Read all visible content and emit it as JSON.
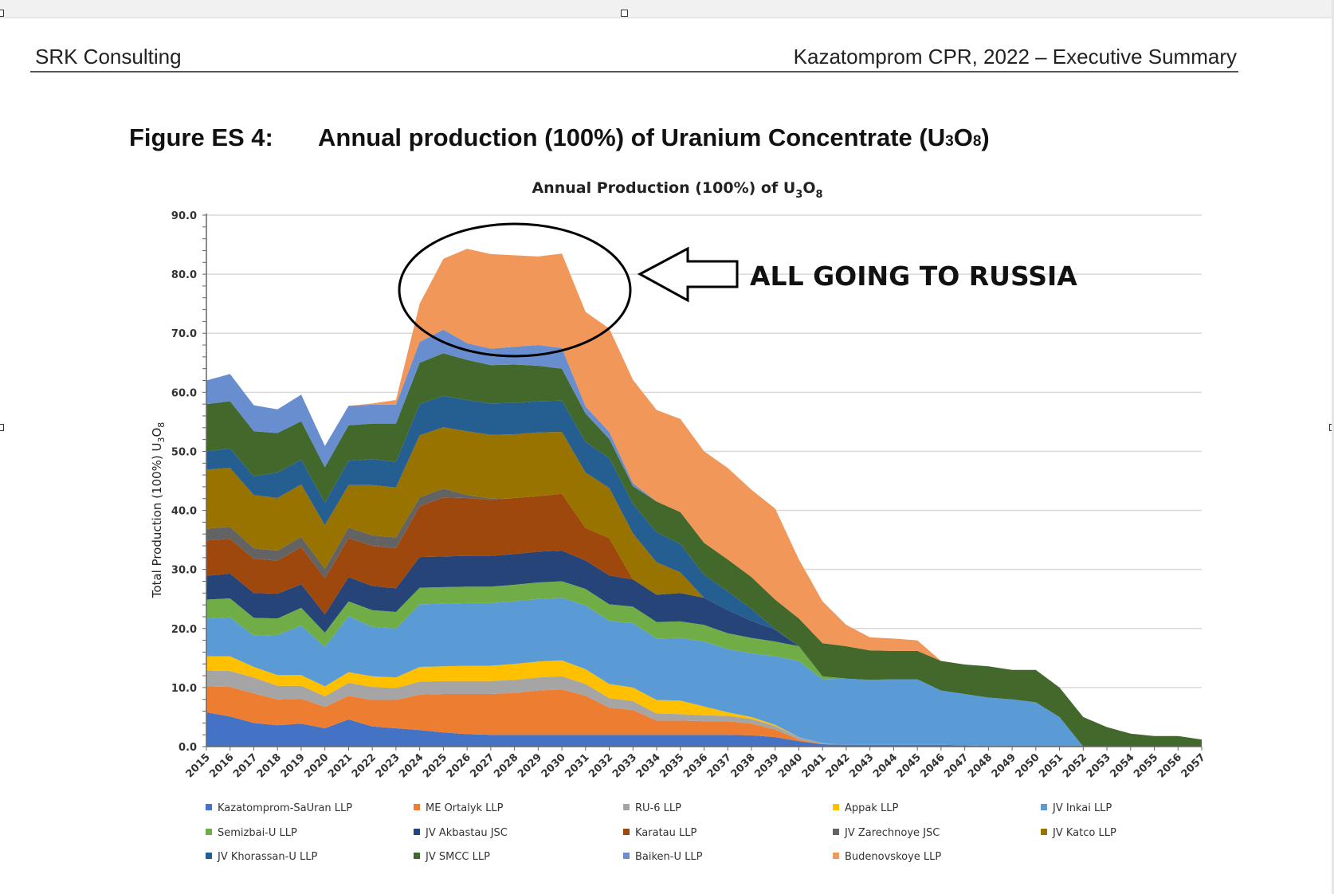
{
  "header": {
    "left": "SRK Consulting",
    "right": "Kazatomprom CPR, 2022 – Executive Summary"
  },
  "figure": {
    "label": "Figure ES 4:",
    "caption_prefix": "Annual production (100%) of Uranium Concentrate (U",
    "caption_sub1": "3",
    "caption_mid": "O",
    "caption_sub2": "8",
    "caption_suffix": ")"
  },
  "annotation": {
    "text": "ALL GOING TO RUSSIA"
  },
  "chart_data": {
    "type": "area",
    "stacked": true,
    "title_prefix": "Annual Production (100%) of U",
    "title_sub1": "3",
    "title_mid": "O",
    "title_sub2": "8",
    "ylabel_prefix": "Total Production (100%) U",
    "ylabel_sub1": "3",
    "ylabel_mid": "O",
    "ylabel_sub2": "8",
    "ylim": [
      0,
      90
    ],
    "yticks": [
      "0.0",
      "10.0",
      "20.0",
      "30.0",
      "40.0",
      "50.0",
      "60.0",
      "70.0",
      "80.0",
      "90.0"
    ],
    "grid": true,
    "legend_position": "bottom",
    "x": [
      "2015",
      "2016",
      "2017",
      "2018",
      "2019",
      "2020",
      "2021",
      "2022",
      "2023",
      "2024",
      "2025",
      "2026",
      "2027",
      "2028",
      "2029",
      "2030",
      "2031",
      "2032",
      "2033",
      "2034",
      "2035",
      "2036",
      "2037",
      "2038",
      "2039",
      "2040",
      "2041",
      "2042",
      "2043",
      "2044",
      "2045",
      "2046",
      "2047",
      "2048",
      "2049",
      "2050",
      "2051",
      "2052",
      "2053",
      "2054",
      "2055",
      "2056",
      "2057"
    ],
    "series": [
      {
        "name": "Kazatomprom-SaUran LLP",
        "color": "#4472c4",
        "values": [
          5.8,
          5.1,
          4,
          3.6,
          3.9,
          3.1,
          4.6,
          3.4,
          3.1,
          2.8,
          2.4,
          2.1,
          2,
          2,
          2,
          2,
          2,
          2,
          2,
          2,
          2,
          2,
          2,
          1.9,
          1.6,
          0.9,
          0.4,
          0.3,
          0.3,
          0.3,
          0.3,
          0.3,
          0.2,
          0.1,
          0,
          0,
          0,
          0,
          0,
          0,
          0,
          0,
          0
        ]
      },
      {
        "name": "ME Ortalyk LLP",
        "color": "#ed7d31",
        "values": [
          4.4,
          5,
          5,
          4.4,
          4.2,
          3.6,
          4,
          4.5,
          4.8,
          6,
          6.5,
          6.8,
          6.9,
          7.1,
          7.5,
          7.7,
          6.6,
          4.6,
          4.2,
          2.4,
          2.4,
          2.3,
          2.3,
          2,
          1.3,
          0.3,
          0,
          0,
          0,
          0,
          0,
          0,
          0,
          0,
          0,
          0,
          0,
          0,
          0,
          0,
          0,
          0,
          0
        ]
      },
      {
        "name": "RU-6 LLP",
        "color": "#a5a5a5",
        "values": [
          2.7,
          2.7,
          2.7,
          2.3,
          2.2,
          1.8,
          2.2,
          2.2,
          2,
          2.2,
          2.2,
          2.2,
          2.2,
          2.2,
          2.2,
          2.2,
          2,
          1.6,
          1.5,
          1.2,
          1.1,
          1,
          0.9,
          0.8,
          0.6,
          0.4,
          0.2,
          0,
          0,
          0,
          0,
          0,
          0,
          0,
          0,
          0,
          0,
          0,
          0,
          0,
          0,
          0,
          0
        ]
      },
      {
        "name": "Appak LLP",
        "color": "#ffc000",
        "values": [
          2.4,
          2.5,
          1.8,
          1.8,
          1.8,
          1.7,
          1.8,
          1.8,
          1.8,
          2.5,
          2.5,
          2.6,
          2.6,
          2.7,
          2.7,
          2.7,
          2.5,
          2.4,
          2.3,
          2.3,
          2.3,
          1.5,
          0.6,
          0.3,
          0.2,
          0,
          0,
          0,
          0,
          0,
          0,
          0,
          0,
          0,
          0,
          0,
          0,
          0,
          0,
          0,
          0,
          0,
          0
        ]
      },
      {
        "name": "JV Inkai LLP",
        "color": "#5b9bd5",
        "values": [
          6.4,
          6.6,
          5.3,
          6.8,
          8.4,
          6.7,
          9.5,
          8.4,
          8.3,
          10.6,
          10.6,
          10.6,
          10.6,
          10.6,
          10.6,
          10.6,
          10.8,
          10.7,
          10.9,
          10.4,
          10.6,
          11,
          10.7,
          10.8,
          11.6,
          12.9,
          10.8,
          11.2,
          11,
          11.1,
          11.1,
          9.2,
          8.7,
          8.2,
          8,
          7.5,
          5,
          0,
          0,
          0,
          0,
          0,
          0
        ]
      },
      {
        "name": "Semizbai-U LLP",
        "color": "#70ad47",
        "values": [
          3.2,
          3.2,
          3,
          2.8,
          3,
          2.4,
          2.5,
          2.8,
          2.8,
          2.8,
          2.8,
          2.8,
          2.8,
          2.8,
          2.8,
          2.8,
          2.8,
          2.8,
          2.8,
          2.8,
          2.8,
          2.8,
          2.7,
          2.6,
          2.5,
          2.5,
          0.5,
          0,
          0,
          0,
          0,
          0,
          0,
          0,
          0,
          0,
          0,
          0,
          0,
          0,
          0,
          0,
          0
        ]
      },
      {
        "name": "JV Akbastau JSC",
        "color": "#264478",
        "values": [
          4,
          4.2,
          4.2,
          4.2,
          4,
          3.1,
          4.1,
          4.1,
          4,
          5.2,
          5.2,
          5.2,
          5.2,
          5.2,
          5.2,
          5.2,
          4.8,
          4.9,
          4.6,
          4.6,
          4.8,
          4.6,
          3.9,
          2.9,
          2,
          0,
          0,
          0,
          0,
          0,
          0,
          0,
          0,
          0,
          0,
          0,
          0,
          0,
          0,
          0,
          0,
          0,
          0
        ]
      },
      {
        "name": "Karatau LLP",
        "color": "#9e480e",
        "values": [
          6,
          5.9,
          5.8,
          5.6,
          6.3,
          6.1,
          6.6,
          6.8,
          6.8,
          8.6,
          10,
          9.8,
          9.5,
          9.5,
          9.4,
          9.6,
          5.5,
          6.3,
          0,
          0,
          0,
          0,
          0,
          0,
          0,
          0,
          0,
          0,
          0,
          0,
          0,
          0,
          0,
          0,
          0,
          0,
          0,
          0,
          0,
          0,
          0,
          0,
          0
        ]
      },
      {
        "name": "JV Zarechnoye JSC",
        "color": "#636363",
        "values": [
          2,
          2,
          1.8,
          1.7,
          1.7,
          1.6,
          1.8,
          1.8,
          1.8,
          1.5,
          1.5,
          0.5,
          0.2,
          0,
          0,
          0,
          0,
          0,
          0,
          0,
          0,
          0,
          0,
          0,
          0,
          0,
          0,
          0,
          0,
          0,
          0,
          0,
          0,
          0,
          0,
          0,
          0,
          0,
          0,
          0,
          0,
          0,
          0
        ]
      },
      {
        "name": "JV Katco LLP",
        "color": "#997300",
        "values": [
          10,
          10,
          9,
          8.9,
          8.9,
          7.4,
          7.2,
          8.5,
          8.5,
          10.5,
          10.4,
          10.8,
          10.8,
          10.8,
          10.8,
          10.5,
          9.4,
          8.5,
          7.8,
          5.5,
          3.5,
          0,
          0,
          0,
          0,
          0,
          0,
          0,
          0,
          0,
          0,
          0,
          0,
          0,
          0,
          0,
          0,
          0,
          0,
          0,
          0,
          0,
          0
        ]
      },
      {
        "name": "JV Khorassan-U LLP",
        "color": "#255e91",
        "values": [
          3.1,
          3.3,
          3.2,
          4.3,
          4.2,
          3.8,
          4.1,
          4.4,
          4.3,
          5.3,
          5.3,
          5.3,
          5.3,
          5.3,
          5.3,
          5.3,
          5.2,
          5.1,
          5,
          5.1,
          4.8,
          3.9,
          3.2,
          2,
          0.1,
          0,
          0,
          0,
          0,
          0,
          0,
          0,
          0,
          0,
          0,
          0,
          0,
          0,
          0,
          0,
          0,
          0,
          0
        ]
      },
      {
        "name": "JV SMCC LLP",
        "color": "#43682b",
        "values": [
          8,
          8,
          7.6,
          6.7,
          6.5,
          6,
          6,
          6,
          6.5,
          7,
          7.2,
          6.8,
          6.5,
          6.5,
          6,
          5.4,
          4.8,
          3.2,
          3,
          5.2,
          5.4,
          5.4,
          5.4,
          5.4,
          5,
          4.7,
          5.6,
          5.5,
          5,
          4.8,
          4.8,
          5,
          5,
          5.3,
          5,
          5.5,
          5,
          5,
          3.3,
          2.2,
          1.8,
          1.8,
          1.2
        ]
      },
      {
        "name": "Baiken-U LLP",
        "color": "#698ed0",
        "values": [
          4,
          4.6,
          4.4,
          4,
          4.5,
          3.6,
          3.3,
          3.2,
          3.2,
          3.5,
          4,
          2.8,
          2.8,
          3,
          3.5,
          3.5,
          1.2,
          1.2,
          0.5,
          0,
          0,
          0,
          0,
          0,
          0,
          0,
          0,
          0,
          0,
          0,
          0,
          0,
          0,
          0,
          0,
          0,
          0,
          0,
          0,
          0,
          0,
          0,
          0
        ]
      },
      {
        "name": "Budenovskoye LLP",
        "color": "#f1975a",
        "values": [
          0,
          0,
          0,
          0,
          0,
          0,
          0,
          0.2,
          0.8,
          6.5,
          12,
          16,
          16,
          15.5,
          15,
          16,
          16,
          17.5,
          17.5,
          15.5,
          15.8,
          15.5,
          15.5,
          14.8,
          15.4,
          10,
          7.1,
          3.6,
          2.2,
          2.1,
          1.8,
          0,
          0,
          0,
          0,
          0,
          0,
          0,
          0,
          0,
          0,
          0,
          0
        ]
      }
    ]
  }
}
